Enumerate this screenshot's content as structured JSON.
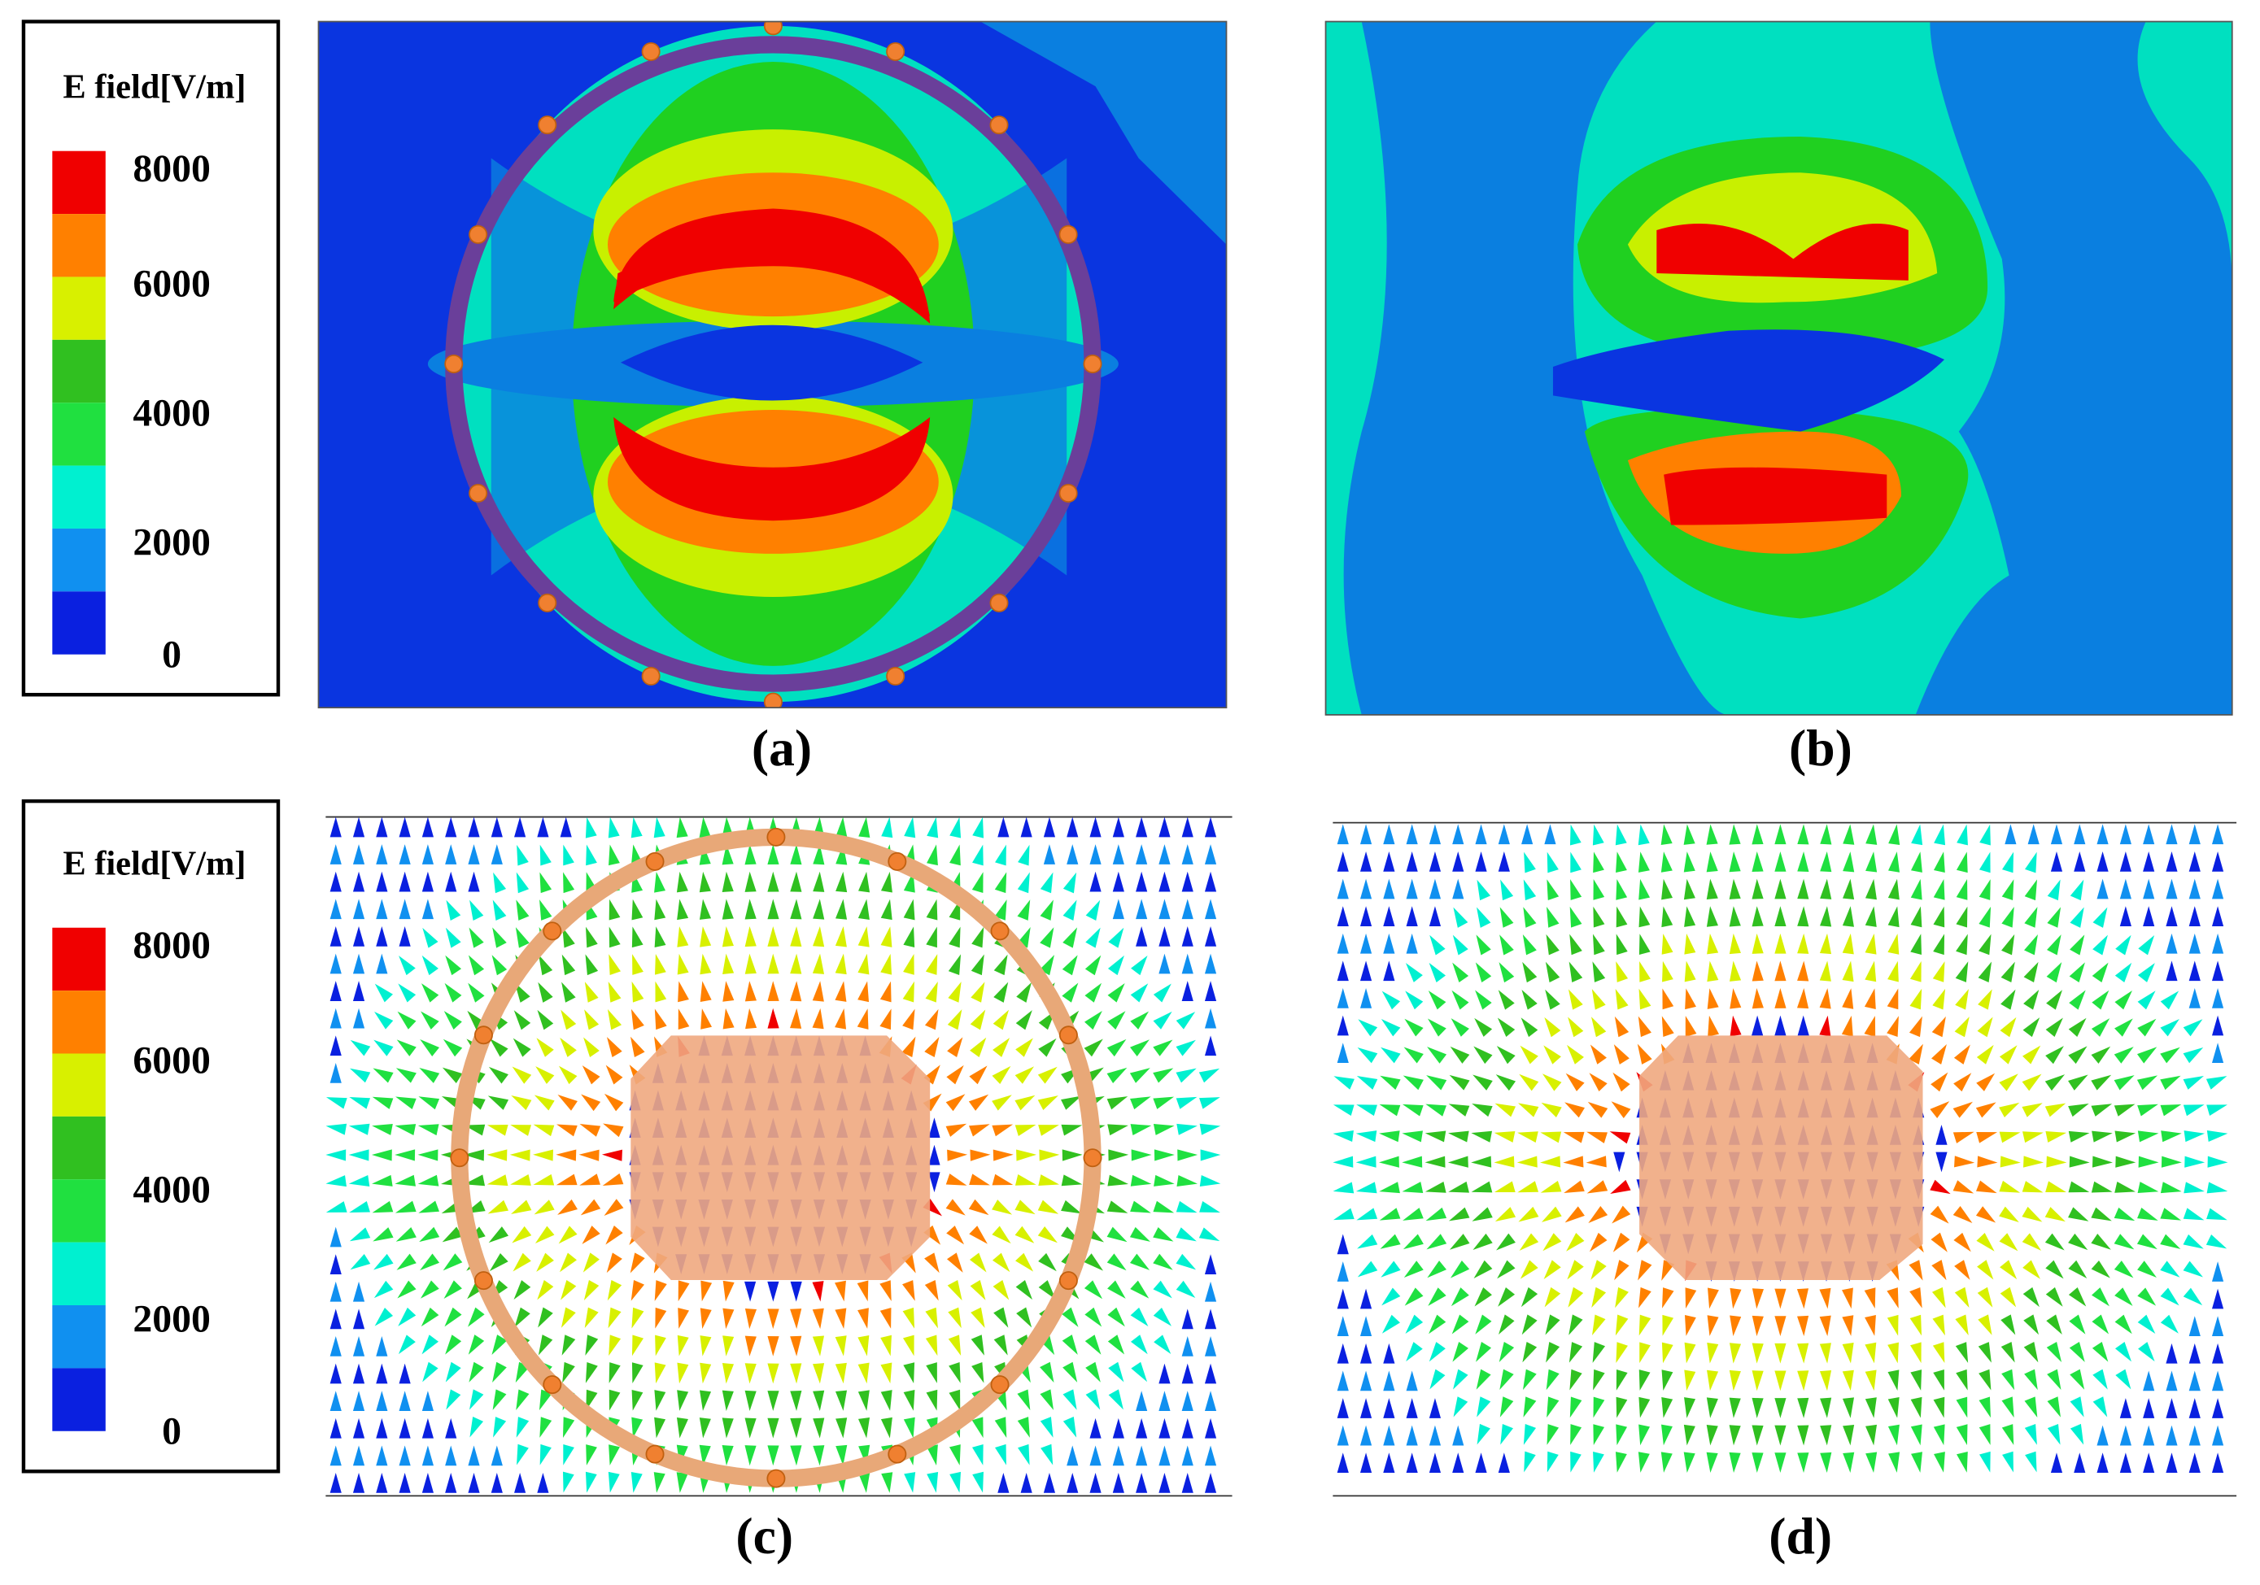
{
  "legends": [
    {
      "title": "E field[V/m]",
      "labels": [
        "8000",
        "6000",
        "4000",
        "2000",
        "0"
      ]
    },
    {
      "title": "E field[V/m]",
      "labels": [
        "8000",
        "6000",
        "4000",
        "2000",
        "0"
      ]
    }
  ],
  "panels": [
    {
      "caption": "(a)"
    },
    {
      "caption": "(b)"
    },
    {
      "caption": "(c)"
    },
    {
      "caption": "(d)"
    }
  ]
}
